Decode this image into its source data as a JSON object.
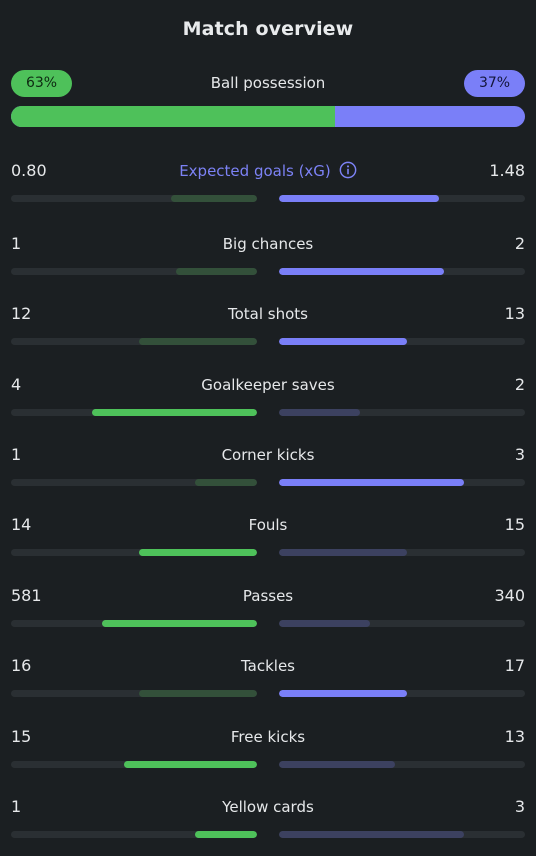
{
  "title": "Match overview",
  "colors": {
    "home_accent": "#4ec15a",
    "away_accent": "#7a7ff8",
    "background": "#1b1f22"
  },
  "possession": {
    "label": "Ball possession",
    "home": "63%",
    "away": "37%",
    "home_fraction": 0.63
  },
  "stats": [
    {
      "label": "Expected goals (xG)",
      "home": "0.80",
      "away": "1.48",
      "home_fill": 0.35,
      "away_fill": 0.65,
      "winner": "away",
      "accent": true,
      "icon": "info-icon"
    },
    {
      "label": "Big chances",
      "home": "1",
      "away": "2",
      "home_fill": 0.33,
      "away_fill": 0.67,
      "winner": "away"
    },
    {
      "label": "Total shots",
      "home": "12",
      "away": "13",
      "home_fill": 0.48,
      "away_fill": 0.52,
      "winner": "away"
    },
    {
      "label": "Goalkeeper saves",
      "home": "4",
      "away": "2",
      "home_fill": 0.67,
      "away_fill": 0.33,
      "winner": "home"
    },
    {
      "label": "Corner kicks",
      "home": "1",
      "away": "3",
      "home_fill": 0.25,
      "away_fill": 0.75,
      "winner": "away"
    },
    {
      "label": "Fouls",
      "home": "14",
      "away": "15",
      "home_fill": 0.48,
      "away_fill": 0.52,
      "winner": "home"
    },
    {
      "label": "Passes",
      "home": "581",
      "away": "340",
      "home_fill": 0.63,
      "away_fill": 0.37,
      "winner": "home"
    },
    {
      "label": "Tackles",
      "home": "16",
      "away": "17",
      "home_fill": 0.48,
      "away_fill": 0.52,
      "winner": "away"
    },
    {
      "label": "Free kicks",
      "home": "15",
      "away": "13",
      "home_fill": 0.54,
      "away_fill": 0.47,
      "winner": "home"
    },
    {
      "label": "Yellow cards",
      "home": "1",
      "away": "3",
      "home_fill": 0.25,
      "away_fill": 0.75,
      "winner": "home"
    }
  ]
}
